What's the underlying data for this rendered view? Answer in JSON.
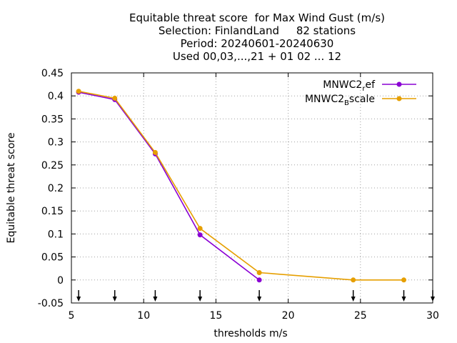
{
  "chart_data": {
    "type": "line",
    "title_lines": [
      "Equitable threat score  for Max Wind Gust (m/s)",
      "Selection: FinlandLand     82 stations",
      "Period: 20240601-20240630",
      "Used 00,03,...,21 + 01 02 ... 12"
    ],
    "xlabel": "thresholds m/s",
    "ylabel": "Equitable threat score",
    "xlim": [
      5,
      30
    ],
    "ylim": [
      -0.05,
      0.45
    ],
    "x_ticks": [
      5,
      10,
      15,
      20,
      25,
      30
    ],
    "y_ticks": [
      -0.05,
      0,
      0.05,
      0.1,
      0.15,
      0.2,
      0.25,
      0.3,
      0.35,
      0.4,
      0.45
    ],
    "y_tick_labels": [
      "-0.05",
      "0",
      "0.05",
      "0.1",
      "0.15",
      "0.2",
      "0.25",
      "0.3",
      "0.35",
      "0.4",
      "0.45"
    ],
    "grid": true,
    "legend_position": "top-right",
    "threshold_arrows": [
      5.5,
      8,
      10.8,
      13.9,
      18,
      24.5,
      28,
      30
    ],
    "series": [
      {
        "name_base": "MNWC2",
        "name_sub": "r",
        "name_rest": "ef",
        "color": "#8a00d4",
        "x": [
          5.5,
          8,
          10.8,
          13.9,
          18
        ],
        "y": [
          0.408,
          0.392,
          0.274,
          0.098,
          0.0
        ]
      },
      {
        "name_base": "MNWC2",
        "name_sub": "B",
        "name_rest": "scale",
        "color": "#e69f00",
        "x": [
          5.5,
          8,
          10.8,
          13.9,
          18,
          24.5,
          28
        ],
        "y": [
          0.41,
          0.395,
          0.277,
          0.112,
          0.016,
          0.0,
          0.0
        ]
      }
    ]
  }
}
